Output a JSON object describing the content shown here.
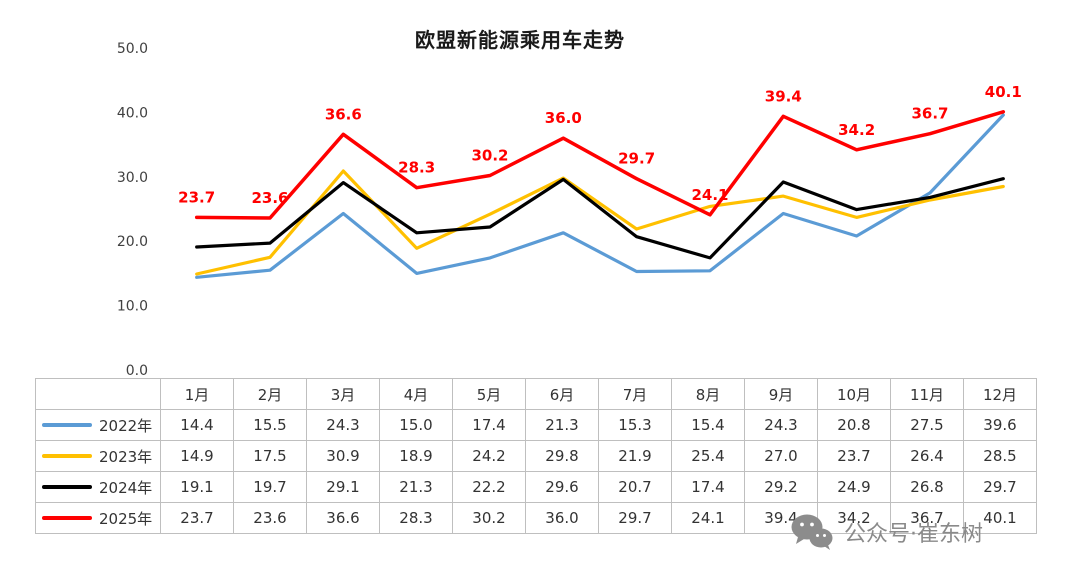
{
  "title": "欧盟新能源乘用车走势",
  "watermark": {
    "label": "公众号·崔东树"
  },
  "chart_data": {
    "type": "line",
    "title": "欧盟新能源乘用车走势",
    "categories": [
      "1月",
      "2月",
      "3月",
      "4月",
      "5月",
      "6月",
      "7月",
      "8月",
      "9月",
      "10月",
      "11月",
      "12月"
    ],
    "yticks": [
      "0.0",
      "10.0",
      "20.0",
      "30.0",
      "40.0",
      "50.0"
    ],
    "ylim": [
      0,
      50
    ],
    "gridlines": false,
    "legend_position": "table-rows-left",
    "series": [
      {
        "name": "2022年",
        "color": "#5B9BD5",
        "data_labels": false,
        "values": [
          14.4,
          15.5,
          24.3,
          15.0,
          17.4,
          21.3,
          15.3,
          15.4,
          24.3,
          20.8,
          27.5,
          39.6
        ]
      },
      {
        "name": "2023年",
        "color": "#FFC000",
        "data_labels": false,
        "values": [
          14.9,
          17.5,
          30.9,
          18.9,
          24.2,
          29.8,
          21.9,
          25.4,
          27.0,
          23.7,
          26.4,
          28.5
        ]
      },
      {
        "name": "2024年",
        "color": "#000000",
        "data_labels": false,
        "values": [
          19.1,
          19.7,
          29.1,
          21.3,
          22.2,
          29.6,
          20.7,
          17.4,
          29.2,
          24.9,
          26.8,
          29.7
        ]
      },
      {
        "name": "2025年",
        "color": "#FF0000",
        "data_labels": true,
        "values": [
          23.7,
          23.6,
          36.6,
          28.3,
          30.2,
          36.0,
          29.7,
          24.1,
          39.4,
          34.2,
          36.7,
          40.1
        ]
      }
    ]
  }
}
